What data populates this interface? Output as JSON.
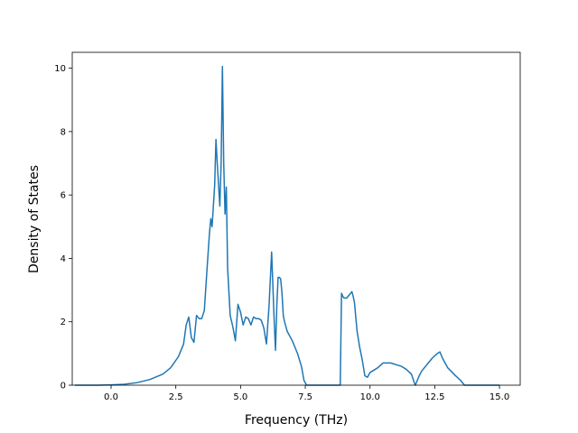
{
  "chart_data": {
    "type": "line",
    "title": "",
    "xlabel": "Frequency (THz)",
    "ylabel": "Density of States",
    "xlim": [
      -1.5,
      15.8
    ],
    "ylim": [
      0,
      10.5
    ],
    "x_ticks": [
      0.0,
      2.5,
      5.0,
      7.5,
      10.0,
      12.5,
      15.0
    ],
    "x_tick_labels": [
      "0.0",
      "2.5",
      "5.0",
      "7.5",
      "10.0",
      "12.5",
      "15.0"
    ],
    "y_ticks": [
      0,
      2,
      4,
      6,
      8,
      10
    ],
    "y_tick_labels": [
      "0",
      "2",
      "4",
      "6",
      "8",
      "10"
    ],
    "grid": false,
    "series": [
      {
        "color": "#1f77b4",
        "x": [
          -1.4,
          -0.5,
          0.0,
          0.5,
          1.0,
          1.5,
          2.0,
          2.3,
          2.6,
          2.8,
          2.9,
          3.0,
          3.1,
          3.2,
          3.3,
          3.4,
          3.5,
          3.6,
          3.7,
          3.8,
          3.85,
          3.9,
          4.0,
          4.05,
          4.1,
          4.2,
          4.25,
          4.3,
          4.35,
          4.4,
          4.45,
          4.5,
          4.6,
          4.7,
          4.8,
          4.9,
          5.0,
          5.1,
          5.2,
          5.3,
          5.4,
          5.5,
          5.6,
          5.7,
          5.8,
          5.9,
          6.0,
          6.1,
          6.2,
          6.3,
          6.35,
          6.4,
          6.45,
          6.5,
          6.55,
          6.6,
          6.65,
          6.7,
          6.75,
          6.8,
          7.0,
          7.2,
          7.35,
          7.45,
          7.55,
          7.6,
          7.7,
          8.0,
          8.5,
          8.85,
          8.9,
          8.95,
          9.0,
          9.1,
          9.2,
          9.3,
          9.35,
          9.4,
          9.5,
          9.6,
          9.7,
          9.8,
          9.9,
          10.0,
          10.1,
          10.2,
          10.3,
          10.5,
          10.8,
          11.0,
          11.2,
          11.4,
          11.6,
          11.7,
          11.75,
          11.8,
          11.9,
          12.0,
          12.2,
          12.4,
          12.6,
          12.7,
          12.8,
          13.0,
          13.3,
          13.5,
          13.65,
          13.75,
          14.0,
          14.5,
          15.0
        ],
        "y": [
          0.0,
          0.0,
          0.01,
          0.03,
          0.08,
          0.18,
          0.35,
          0.55,
          0.9,
          1.3,
          1.9,
          2.15,
          1.5,
          1.35,
          2.2,
          2.1,
          2.1,
          2.35,
          3.6,
          4.8,
          5.25,
          5.0,
          6.3,
          7.75,
          7.0,
          5.65,
          7.0,
          10.05,
          7.0,
          5.4,
          6.25,
          3.7,
          2.2,
          1.85,
          1.4,
          2.55,
          2.3,
          1.9,
          2.15,
          2.1,
          1.9,
          2.15,
          2.1,
          2.1,
          2.05,
          1.8,
          1.3,
          2.5,
          4.2,
          2.0,
          1.1,
          2.5,
          3.4,
          3.4,
          3.35,
          2.9,
          2.2,
          2.0,
          1.85,
          1.7,
          1.4,
          1.0,
          0.6,
          0.15,
          0.0,
          0.0,
          0.0,
          0.0,
          0.0,
          0.0,
          2.9,
          2.8,
          2.75,
          2.75,
          2.85,
          2.95,
          2.8,
          2.6,
          1.7,
          1.2,
          0.8,
          0.3,
          0.25,
          0.4,
          0.45,
          0.5,
          0.55,
          0.7,
          0.7,
          0.65,
          0.6,
          0.5,
          0.35,
          0.1,
          0.0,
          0.1,
          0.3,
          0.45,
          0.65,
          0.85,
          1.0,
          1.05,
          0.85,
          0.55,
          0.3,
          0.15,
          0.0,
          0.0,
          0.0,
          0.0,
          0.0
        ]
      }
    ]
  }
}
